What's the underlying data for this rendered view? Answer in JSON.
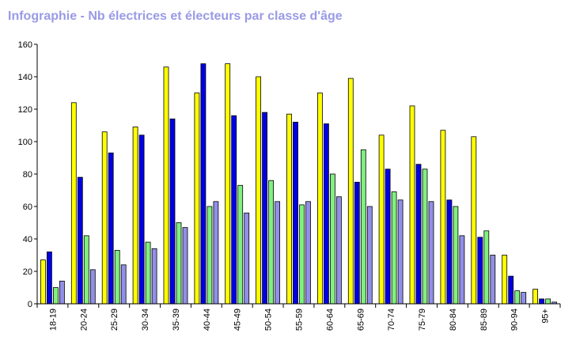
{
  "chart_data": {
    "type": "bar",
    "title": "Infographie - Nb électrices et électeurs par classe d'âge",
    "xlabel": "",
    "ylabel": "",
    "ylim": [
      0,
      160
    ],
    "yticks": [
      0,
      20,
      40,
      60,
      80,
      100,
      120,
      140,
      160
    ],
    "grid": false,
    "legend": "none",
    "categories": [
      "18-19",
      "20-24",
      "25-29",
      "30-34",
      "35-39",
      "40-44",
      "45-49",
      "50-54",
      "55-59",
      "60-64",
      "65-69",
      "70-74",
      "75-79",
      "80-84",
      "85-89",
      "90-94",
      "95+"
    ],
    "series": [
      {
        "color": "#ffff00",
        "values": [
          27,
          124,
          106,
          109,
          146,
          130,
          148,
          140,
          117,
          130,
          139,
          104,
          122,
          107,
          103,
          30,
          9
        ]
      },
      {
        "color": "#0000e6",
        "values": [
          32,
          78,
          93,
          104,
          114,
          148,
          116,
          118,
          112,
          111,
          75,
          83,
          86,
          64,
          41,
          17,
          3
        ]
      },
      {
        "color": "#80f080",
        "values": [
          10,
          42,
          33,
          38,
          50,
          60,
          73,
          76,
          61,
          80,
          95,
          69,
          83,
          60,
          45,
          8,
          3
        ]
      },
      {
        "color": "#9090e8",
        "values": [
          14,
          21,
          24,
          34,
          47,
          63,
          56,
          63,
          63,
          66,
          60,
          64,
          63,
          42,
          30,
          7,
          1
        ]
      }
    ]
  }
}
